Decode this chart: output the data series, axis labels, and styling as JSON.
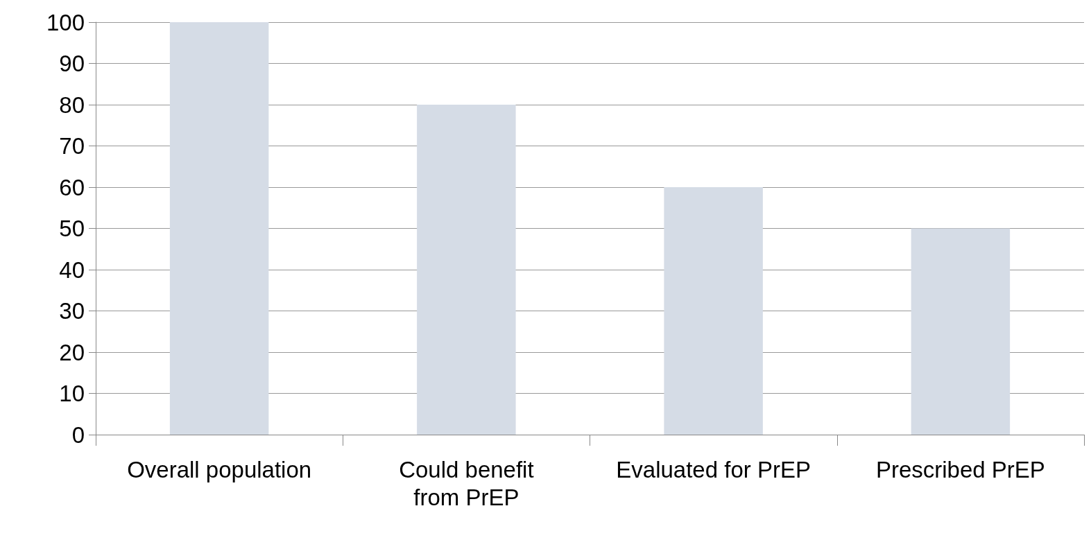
{
  "chart_data": {
    "type": "bar",
    "categories": [
      "Overall population",
      "Could benefit from PrEP",
      "Evaluated for PrEP",
      "Prescribed PrEP"
    ],
    "values": [
      100,
      80,
      60,
      50
    ],
    "color": "#d5dce6",
    "ylim": [
      0,
      100
    ],
    "yticks": [
      0,
      10,
      20,
      30,
      40,
      50,
      60,
      70,
      80,
      90,
      100
    ],
    "grid": "y"
  }
}
